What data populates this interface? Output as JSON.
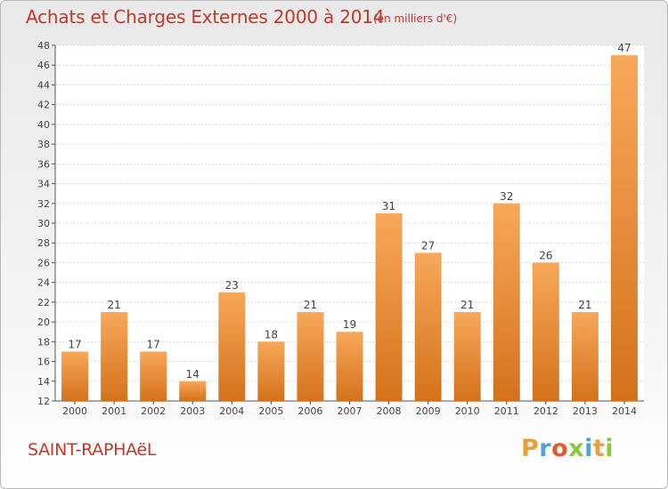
{
  "header": {
    "title": "Achats et Charges Externes 2000 à 2014",
    "unit": "(en milliers d'€)"
  },
  "footer": {
    "place": "SAINT-RAPHAëL",
    "brand": "Proxiti"
  },
  "colors": {
    "title": "#c0392b",
    "bar_top": "#f7a85a",
    "bar_bottom": "#d4721c",
    "brand_letters": [
      "#e8a13a",
      "#4ea4d9",
      "#e05a32",
      "#8cc63f",
      "#4ea4d9",
      "#e8a13a",
      "#8cc63f"
    ]
  },
  "chart_data": {
    "type": "bar",
    "title": "Achats et Charges Externes 2000 à 2014",
    "subtitle": "(en milliers d'€)",
    "categories": [
      "2000",
      "2001",
      "2002",
      "2003",
      "2004",
      "2005",
      "2006",
      "2007",
      "2008",
      "2009",
      "2010",
      "2011",
      "2012",
      "2013",
      "2014"
    ],
    "values": [
      17,
      21,
      17,
      14,
      23,
      18,
      21,
      19,
      31,
      27,
      21,
      32,
      26,
      21,
      47
    ],
    "ylim": [
      12,
      48
    ],
    "yticks": [
      12,
      14,
      16,
      18,
      20,
      22,
      24,
      26,
      28,
      30,
      32,
      34,
      36,
      38,
      40,
      42,
      44,
      46,
      48
    ],
    "grid": true,
    "data_labels": true
  }
}
